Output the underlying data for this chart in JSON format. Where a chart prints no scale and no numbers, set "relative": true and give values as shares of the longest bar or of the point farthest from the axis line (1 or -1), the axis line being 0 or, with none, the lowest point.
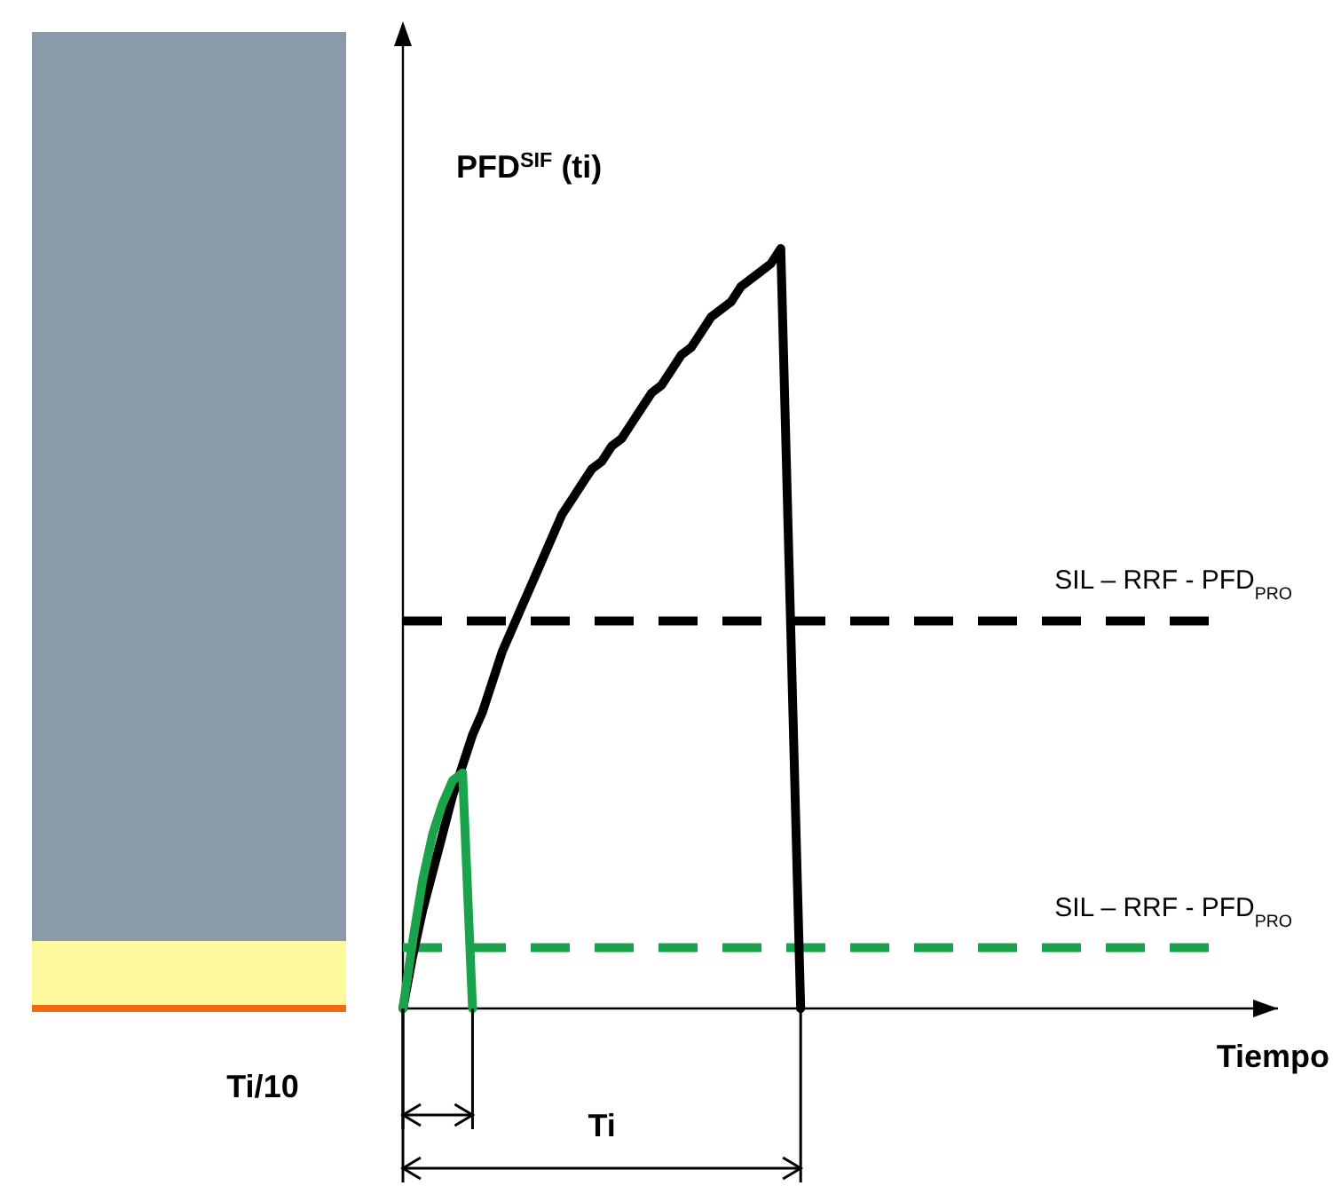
{
  "chart_data": {
    "type": "line",
    "relative": true,
    "ylabel": "PFD$^{SIF}$ (ti)",
    "xlabel": "Tiempo",
    "line_style": "solid",
    "marker": "none",
    "categories": [
      null,
      null,
      null,
      null,
      null,
      null,
      null,
      null,
      null,
      null,
      null,
      null,
      null,
      null,
      null,
      null,
      null,
      null,
      null,
      null,
      null,
      null,
      null,
      null,
      null,
      null,
      null,
      null,
      null,
      null,
      null,
      null,
      null,
      null,
      null,
      null,
      null,
      null,
      null,
      null,
      null,
      null,
      null,
      null,
      null,
      null,
      null,
      null,
      null,
      null,
      null,
      null,
      null,
      null,
      null,
      null,
      null,
      null,
      null,
      null,
      null,
      null,
      null,
      null,
      null,
      null,
      null,
      null,
      null,
      null,
      null,
      null,
      null,
      null,
      null,
      null,
      null,
      null,
      null,
      null,
      null,
      null,
      null,
      null,
      null,
      null,
      null,
      null,
      null
    ],
    "series": [
      {
        "color": "#000000",
        "values": [
          0,
          0.07,
          0.13,
          0.18,
          0.23,
          0.28,
          0.32,
          0.36,
          0.39,
          0.43,
          0.47,
          0.5,
          0.53,
          0.56,
          0.59,
          0.62,
          0.65,
          0.67,
          0.69,
          0.71,
          0.72,
          0.74,
          0.75,
          0.77,
          0.79,
          0.81,
          0.82,
          0.84,
          0.86,
          0.87,
          0.89,
          0.91,
          0.92,
          0.93,
          0.95,
          0.96,
          0.97,
          0.98,
          1.0,
          0.5,
          0,
          null,
          null,
          null,
          null,
          null,
          null,
          null,
          null,
          null,
          null,
          null,
          null,
          null,
          null,
          null,
          null,
          null,
          null,
          null,
          null,
          null,
          null,
          null,
          null,
          null,
          null,
          null,
          null,
          null,
          null,
          null,
          null,
          null,
          null,
          null,
          null,
          null,
          null,
          null,
          null,
          null,
          null,
          null,
          null,
          null,
          null,
          null,
          null
        ]
      },
      {
        "color": "#1aa34a",
        "values": [
          0,
          0.09,
          0.17,
          0.23,
          0.27,
          0.3,
          0.31,
          0,
          null,
          null,
          null,
          null,
          null,
          null,
          null,
          null,
          null,
          null,
          null,
          null,
          null,
          null,
          null,
          null,
          null,
          null,
          null,
          null,
          null,
          null,
          null,
          null,
          null,
          null,
          null,
          null,
          null,
          null,
          null,
          null,
          null,
          null,
          null,
          null,
          null,
          null,
          null,
          null,
          null,
          null,
          null,
          null,
          null,
          null,
          null,
          null,
          null,
          null,
          null,
          null,
          null,
          null,
          null,
          null,
          null,
          null,
          null,
          null,
          null,
          null,
          null,
          null,
          null,
          null,
          null,
          null,
          null,
          null,
          null,
          null,
          null,
          null,
          null,
          null,
          null,
          null,
          null,
          null,
          null
        ]
      }
    ],
    "ref_lines": [
      {
        "axis": "y",
        "value": 0.51,
        "label": "SIL – RRF - PFD$_{PRO}$",
        "color": "#000000",
        "line_style": "dashed"
      },
      {
        "axis": "y",
        "value": 0.08,
        "label": "SIL – RRF - PFD$_{PRO}$",
        "color": "#1aa34a",
        "line_style": "dashed"
      }
    ],
    "annotations": [
      "Ti/10",
      "Ti"
    ]
  }
}
